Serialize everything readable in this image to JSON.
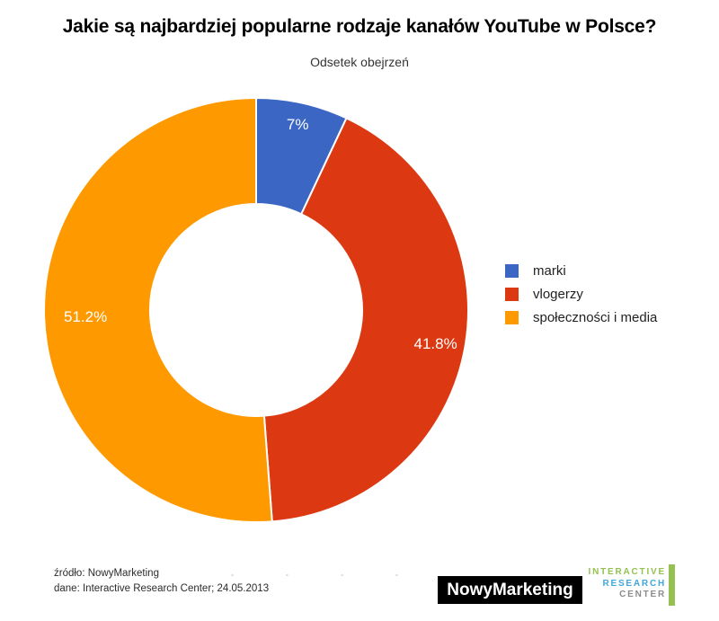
{
  "page": {
    "title": "Jakie są najbardziej popularne rodzaje kanałów YouTube w Polsce?",
    "subtitle": "Odsetek obejrzeń"
  },
  "chart_data": {
    "type": "pie",
    "donut": true,
    "title": "Jakie są najbardziej popularne rodzaje kanałów YouTube w Polsce?",
    "subtitle": "Odsetek obejrzeń",
    "categories": [
      "marki",
      "vlogerzy",
      "społeczności i media"
    ],
    "values": [
      7,
      41.8,
      51.2
    ],
    "slice_labels": [
      "7%",
      "41.8%",
      "51.2%"
    ],
    "colors": [
      "#3B66C4",
      "#DC3912",
      "#FF9900"
    ],
    "start_angle_deg": 0,
    "direction": "clockwise",
    "inner_radius_ratio": 0.5,
    "legend_position": "right",
    "slice_label_color": "#FFFFFF"
  },
  "footer": {
    "source_line": "źródło: NowyMarketing",
    "data_line": "dane: Interactive Research Center; 24.05.2013"
  },
  "logos": {
    "nowymarketing": {
      "text": "NowyMarketing",
      "bg": "#000000",
      "fg": "#FFFFFF"
    },
    "irc": {
      "lines": [
        {
          "text": "INTERACTIVE",
          "color": "#94C152"
        },
        {
          "text": "RESEARCH",
          "color": "#41A8DC"
        },
        {
          "text": "CENTER",
          "color": "#8C8C8E"
        }
      ],
      "bar_color": "#94C152"
    }
  }
}
